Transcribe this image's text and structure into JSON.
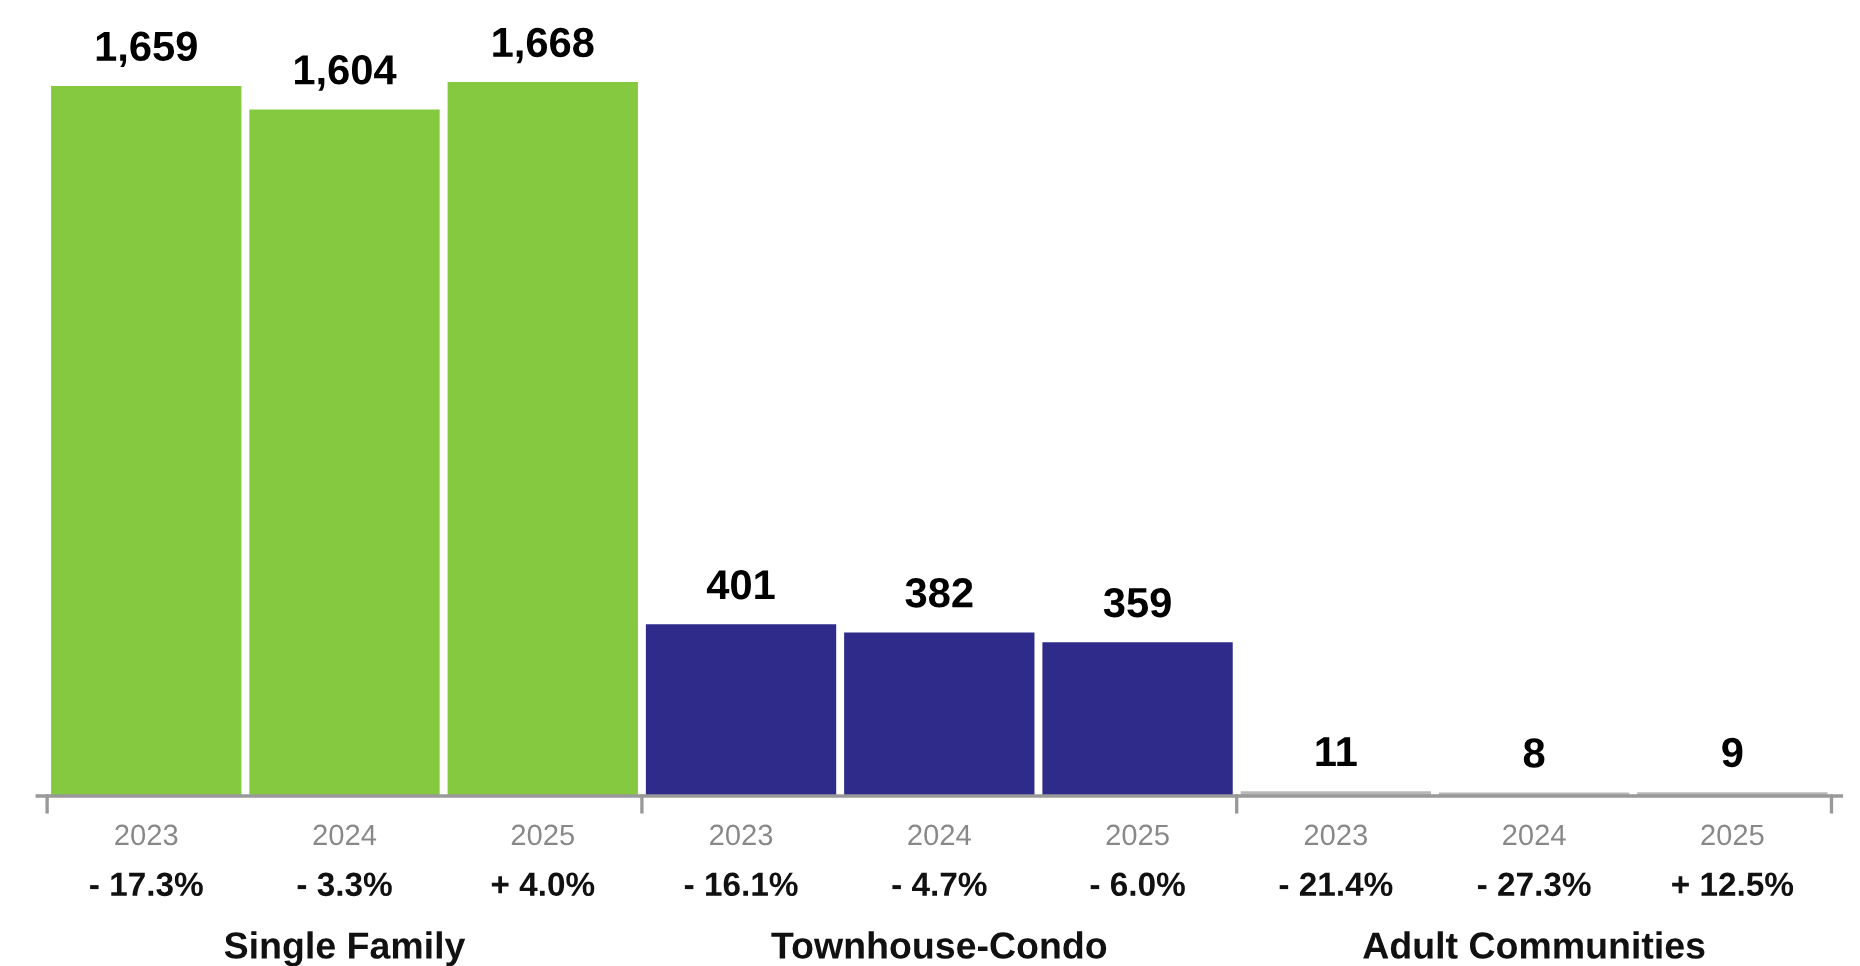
{
  "chart_data": {
    "type": "bar",
    "categories": [
      "2023\n- 17.3%",
      "2024\n- 3.3%",
      "2025\n+ 4.0%",
      "2023\n- 16.1%",
      "2024\n- 4.7%",
      "2025\n- 6.0%",
      "2023\n- 21.4%",
      "2024\n- 27.3%",
      "2025\n+ 12.5%"
    ],
    "values": [
      1659,
      1604,
      1668,
      401,
      382,
      359,
      11,
      8,
      9
    ],
    "colors": [
      "#84c93f",
      "#84c93f",
      "#84c93f",
      "#2e2b8a",
      "#2e2b8a",
      "#2e2b8a",
      "#b8b8b8",
      "#b8b8b8",
      "#b8b8b8"
    ],
    "value_labels": [
      "1,659",
      "1,604",
      "1,668",
      "401",
      "382",
      "359",
      "11",
      "8",
      "9"
    ],
    "annotations": [
      "Single Family",
      "Townhouse-Condo",
      "Adult Communities"
    ]
  }
}
